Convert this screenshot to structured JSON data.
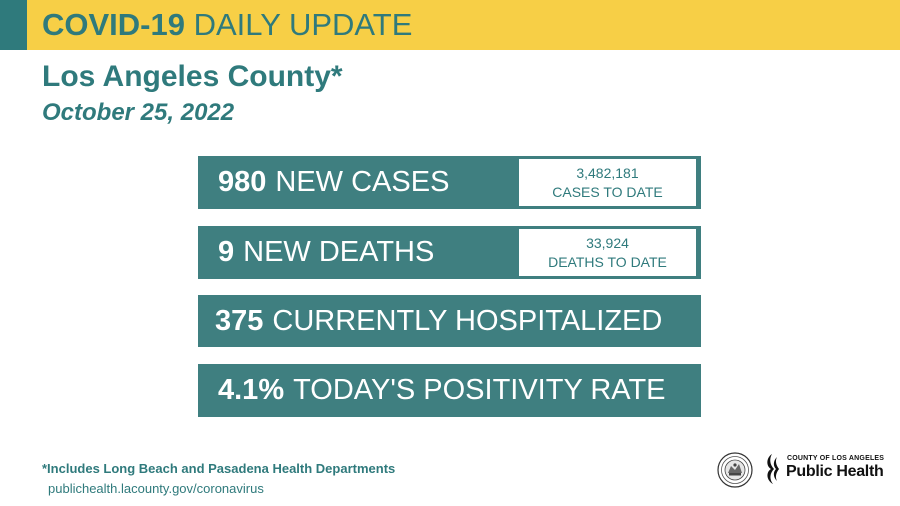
{
  "banner": {
    "title_bold": "COVID-19",
    "title_light": "DAILY UPDATE",
    "background_color": "#f7cf46",
    "accent_color": "#2f7a7c"
  },
  "county": "Los Angeles County*",
  "date": "October 25, 2022",
  "stats": {
    "cases": {
      "number": "980",
      "label": "NEW CASES",
      "to_date_number": "3,482,181",
      "to_date_label": "CASES TO DATE"
    },
    "deaths": {
      "number": "9",
      "label": "NEW DEATHS",
      "to_date_number": "33,924",
      "to_date_label": "DEATHS TO DATE"
    },
    "hospitalized": {
      "number": "375",
      "label": "CURRENTLY HOSPITALIZED"
    },
    "positivity": {
      "number": "4.1%",
      "label": "TODAY'S POSITIVITY RATE"
    }
  },
  "footnote": "*Includes Long Beach and Pasadena Health Departments",
  "url": "publichealth.lacounty.gov/coronavirus",
  "logos": {
    "seal_icon": "county-seal-icon",
    "public_health_county": "COUNTY OF LOS ANGELES",
    "public_health_name": "Public Health"
  },
  "colors": {
    "teal": "#2f7a7c",
    "stat_bar": "#3f7f80",
    "yellow": "#f7cf46"
  }
}
